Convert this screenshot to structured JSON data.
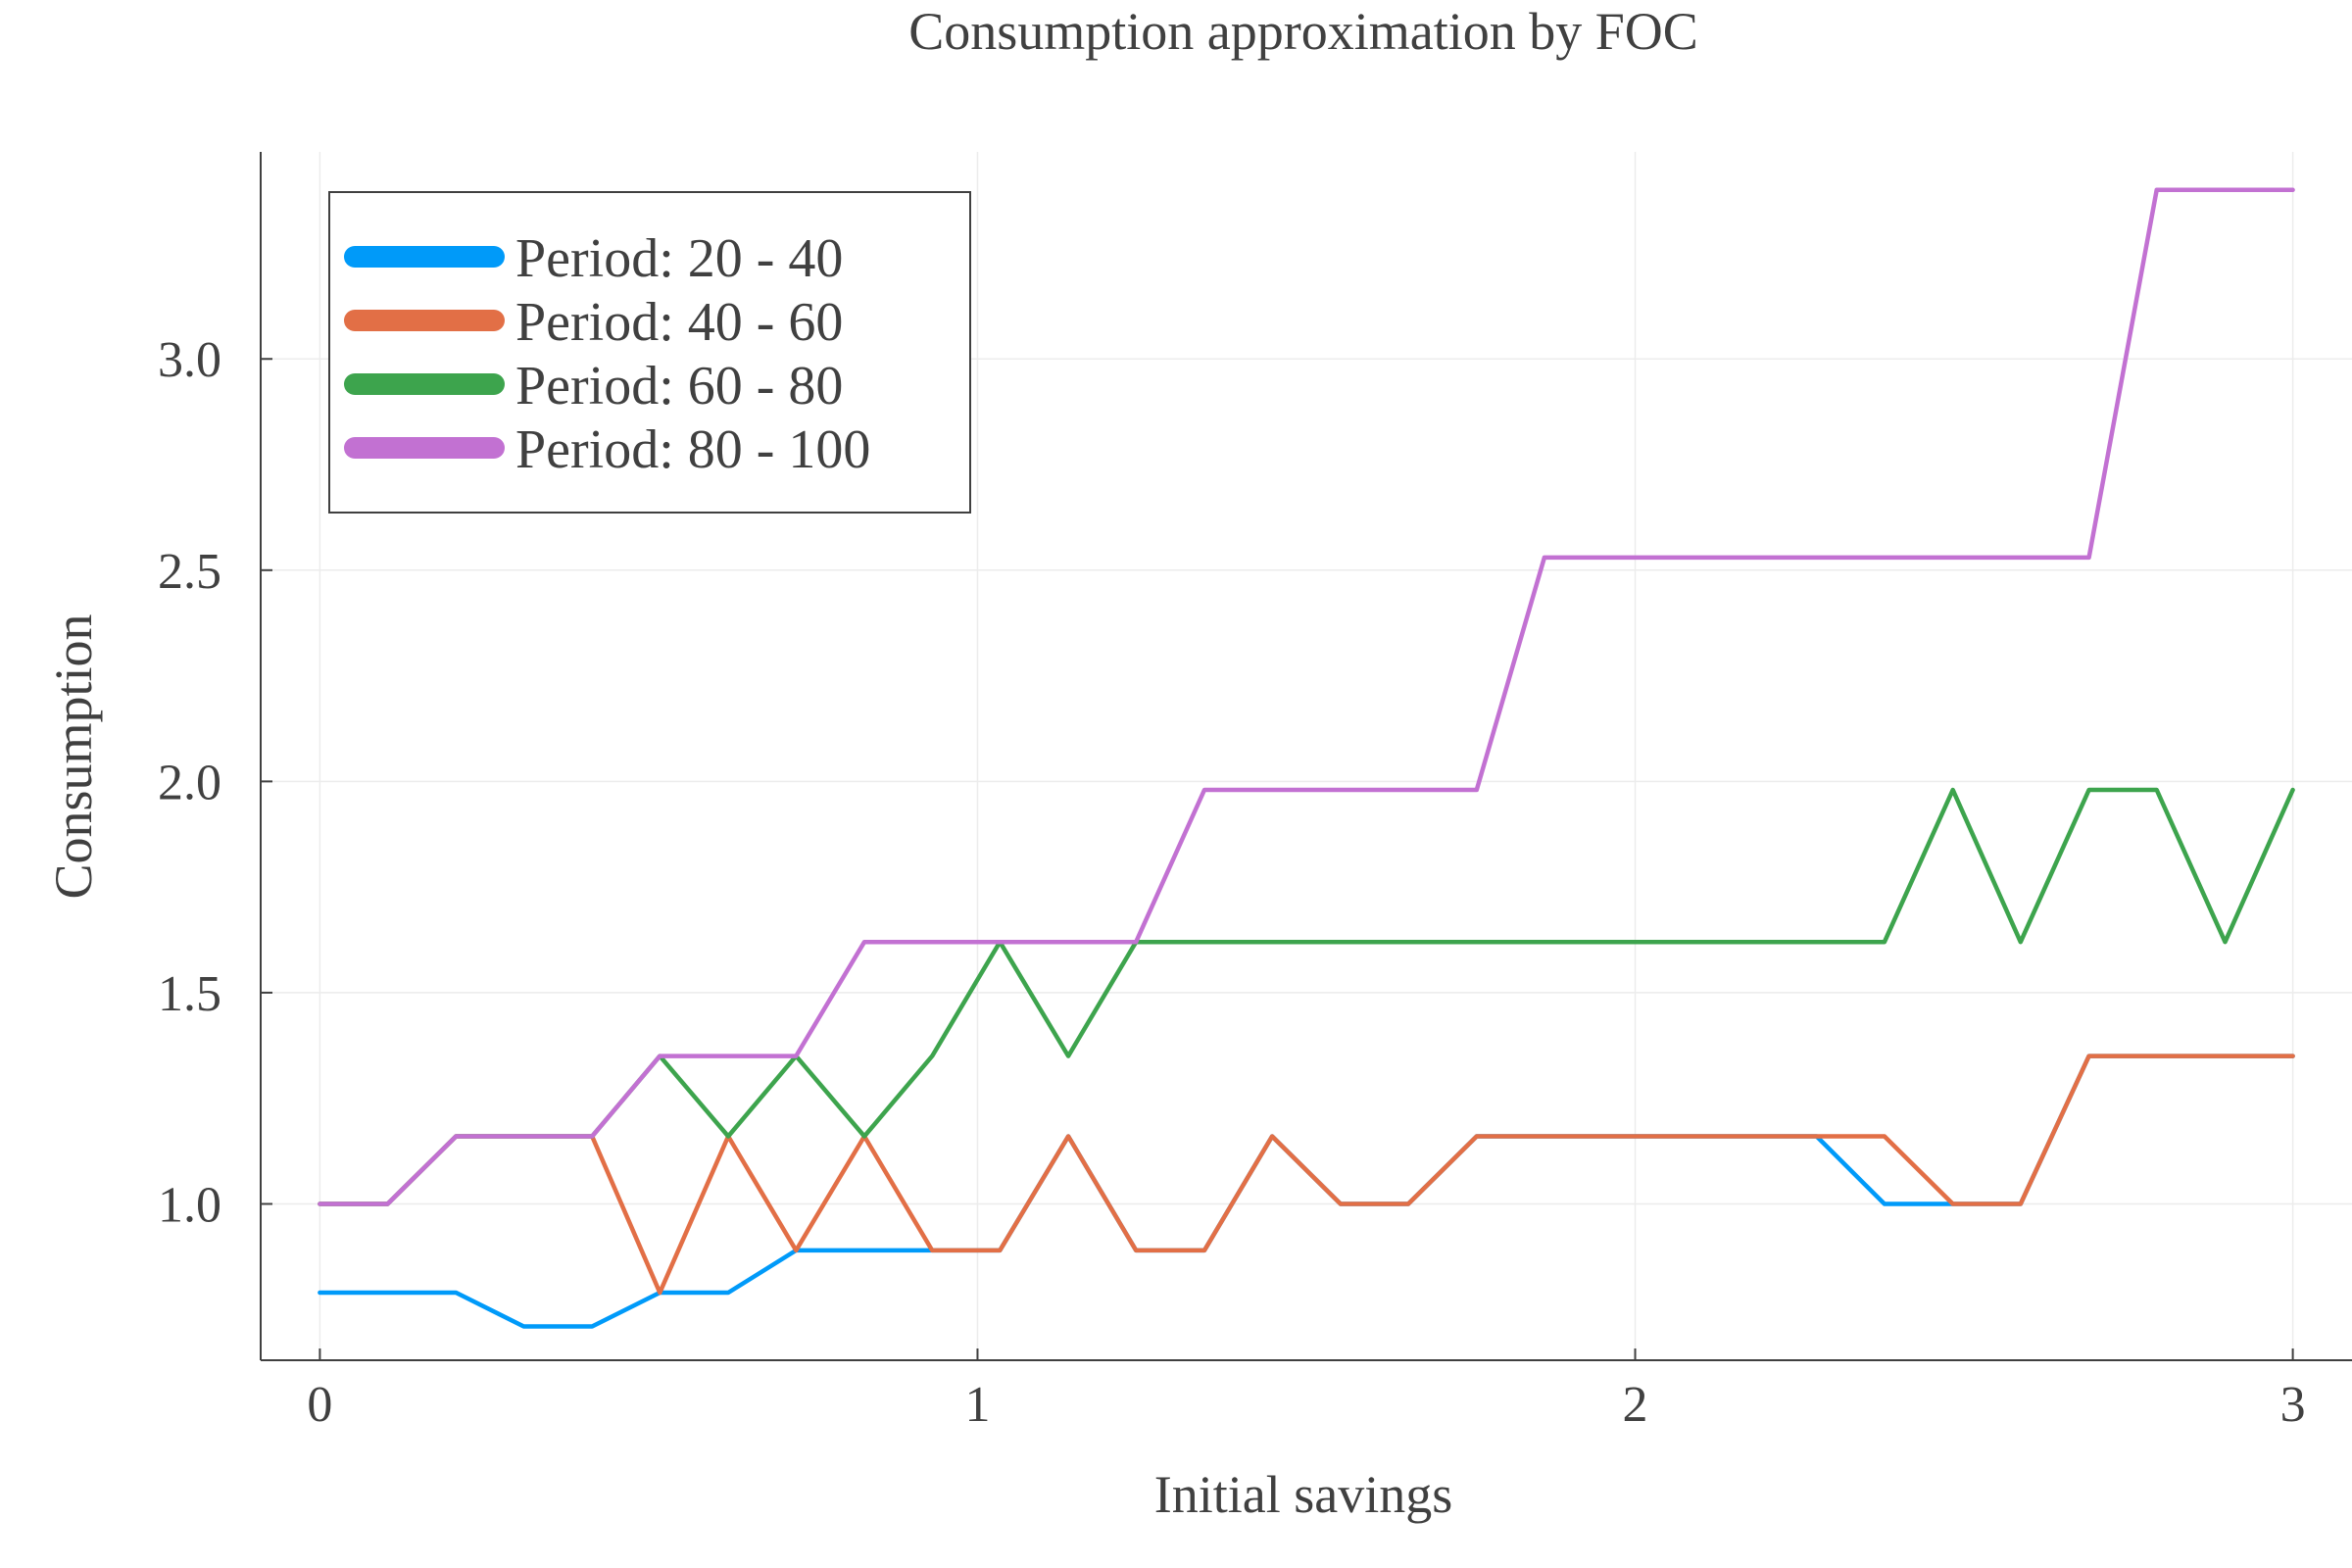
{
  "chart_data": {
    "type": "line",
    "title": "Consumption approximation by FOC",
    "xlabel": "Initial savings",
    "ylabel": "Consumption",
    "xlim": [
      -0.09,
      3.09
    ],
    "ylim": [
      0.63,
      3.49
    ],
    "x_ticks": [
      0,
      1,
      2,
      3
    ],
    "x_tick_labels": [
      "0",
      "1",
      "2",
      "3"
    ],
    "y_ticks": [
      1.0,
      1.5,
      2.0,
      2.5,
      3.0
    ],
    "y_tick_labels": [
      "1.0",
      "1.5",
      "2.0",
      "2.5",
      "3.0"
    ],
    "grid": true,
    "legend_position": "top-left",
    "x": [
      0,
      0.103,
      0.207,
      0.31,
      0.414,
      0.517,
      0.621,
      0.724,
      0.828,
      0.931,
      1.034,
      1.138,
      1.241,
      1.345,
      1.448,
      1.552,
      1.655,
      1.759,
      1.862,
      1.966,
      2.069,
      2.172,
      2.276,
      2.379,
      2.483,
      2.586,
      2.69,
      2.793,
      2.897,
      3.0
    ],
    "series": [
      {
        "name": "Period: 20 - 40",
        "color": "#009af9",
        "values": [
          0.79,
          0.79,
          0.79,
          0.71,
          0.71,
          0.79,
          0.79,
          0.89,
          0.89,
          0.89,
          0.89,
          1.16,
          0.89,
          0.89,
          1.16,
          1.0,
          1.0,
          1.16,
          1.16,
          1.16,
          1.16,
          1.16,
          1.16,
          1.0,
          1.0,
          1.0,
          1.35,
          1.35,
          1.35,
          1.35
        ]
      },
      {
        "name": "Period: 40 - 60",
        "color": "#e26f46",
        "values": [
          1.0,
          1.0,
          1.16,
          1.16,
          1.16,
          0.79,
          1.16,
          0.89,
          1.16,
          0.89,
          0.89,
          1.16,
          0.89,
          0.89,
          1.16,
          1.0,
          1.0,
          1.16,
          1.16,
          1.16,
          1.16,
          1.16,
          1.16,
          1.16,
          1.0,
          1.0,
          1.35,
          1.35,
          1.35,
          1.35
        ]
      },
      {
        "name": "Period: 60 - 80",
        "color": "#3da44d",
        "values": [
          1.0,
          1.0,
          1.16,
          1.16,
          1.16,
          1.35,
          1.16,
          1.35,
          1.16,
          1.35,
          1.62,
          1.35,
          1.62,
          1.62,
          1.62,
          1.62,
          1.62,
          1.62,
          1.62,
          1.62,
          1.62,
          1.62,
          1.62,
          1.62,
          1.98,
          1.62,
          1.98,
          1.98,
          1.62,
          1.98
        ]
      },
      {
        "name": "Period: 80 - 100",
        "color": "#c271d2",
        "values": [
          1.0,
          1.0,
          1.16,
          1.16,
          1.16,
          1.35,
          1.35,
          1.35,
          1.62,
          1.62,
          1.62,
          1.62,
          1.62,
          1.98,
          1.98,
          1.98,
          1.98,
          1.98,
          2.53,
          2.53,
          2.53,
          2.53,
          2.53,
          2.53,
          2.53,
          2.53,
          2.53,
          3.4,
          3.4,
          3.4
        ]
      }
    ]
  }
}
